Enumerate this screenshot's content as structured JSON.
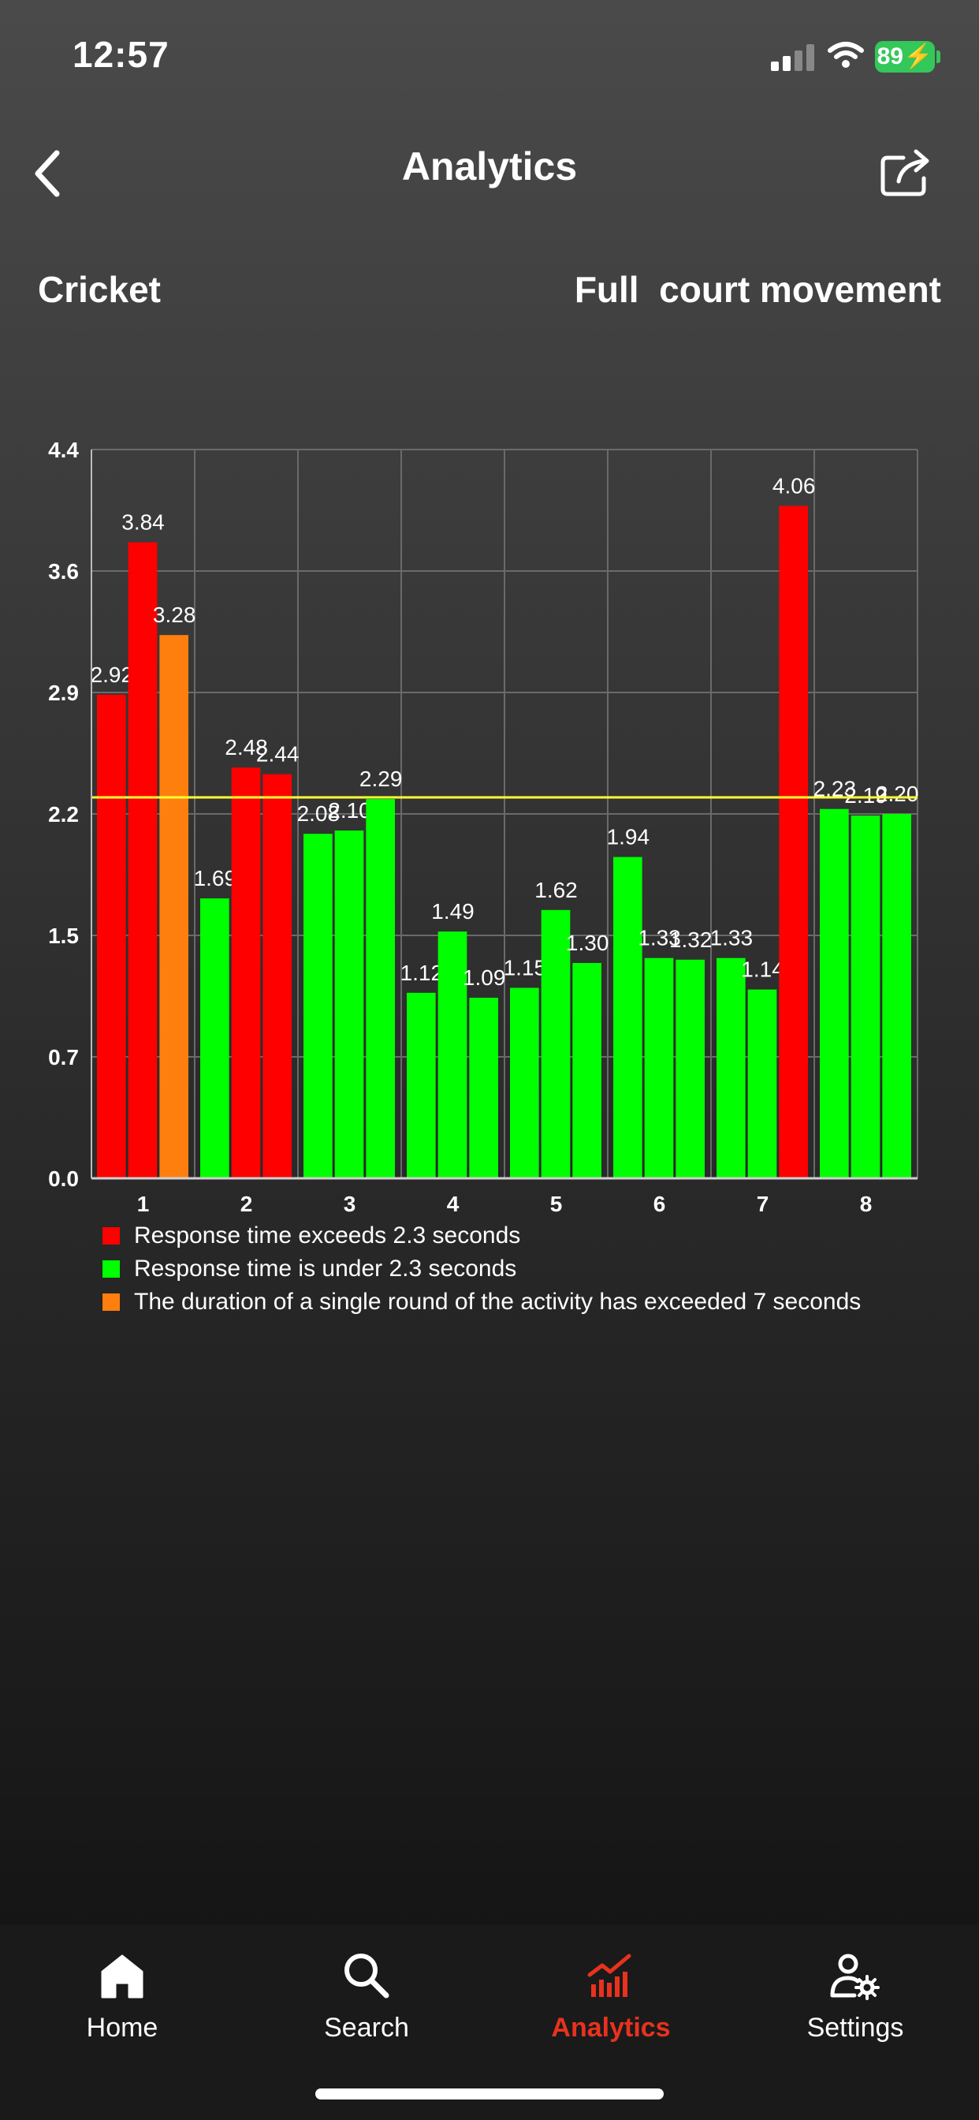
{
  "status_bar": {
    "time": "12:57",
    "battery": "89"
  },
  "header": {
    "title": "Analytics"
  },
  "subheader": {
    "left": "Cricket",
    "right": "Full  court movement"
  },
  "colors": {
    "red": "#ff0000",
    "green": "#00ff00",
    "orange": "#ff7f0e",
    "threshold": "#ffff33",
    "tab_active": "#e8321e"
  },
  "chart_data": {
    "type": "bar",
    "categories": [
      "1",
      "2",
      "3",
      "4",
      "5",
      "6",
      "7",
      "8"
    ],
    "y_ticks": [
      "0.0",
      "0.7",
      "1.5",
      "2.2",
      "2.9",
      "3.6",
      "4.4"
    ],
    "ylim": [
      0,
      4.4
    ],
    "threshold": 2.3,
    "grid": true,
    "groups": [
      [
        {
          "value": 2.92,
          "label": "2.92",
          "color": "red"
        },
        {
          "value": 3.84,
          "label": "3.84",
          "color": "red"
        },
        {
          "value": 3.28,
          "label": "3.28",
          "color": "orange"
        }
      ],
      [
        {
          "value": 1.69,
          "label": "1.69",
          "color": "green"
        },
        {
          "value": 2.48,
          "label": "2.48",
          "color": "red"
        },
        {
          "value": 2.44,
          "label": "2.44",
          "color": "red"
        }
      ],
      [
        {
          "value": 2.08,
          "label": "2.08",
          "color": "green"
        },
        {
          "value": 2.1,
          "label": "2.10",
          "color": "green"
        },
        {
          "value": 2.29,
          "label": "2.29",
          "color": "green"
        }
      ],
      [
        {
          "value": 1.12,
          "label": "1.12",
          "color": "green"
        },
        {
          "value": 1.49,
          "label": "1.49",
          "color": "green"
        },
        {
          "value": 1.09,
          "label": "1.09",
          "color": "green"
        }
      ],
      [
        {
          "value": 1.15,
          "label": "1.15",
          "color": "green"
        },
        {
          "value": 1.62,
          "label": "1.62",
          "color": "green"
        },
        {
          "value": 1.3,
          "label": "1.30",
          "color": "green"
        }
      ],
      [
        {
          "value": 1.94,
          "label": "1.94",
          "color": "green"
        },
        {
          "value": 1.33,
          "label": "1.33",
          "color": "green"
        },
        {
          "value": 1.32,
          "label": "1.32",
          "color": "green"
        }
      ],
      [
        {
          "value": 1.33,
          "label": "1.33",
          "color": "green"
        },
        {
          "value": 1.14,
          "label": "1.14",
          "color": "green"
        },
        {
          "value": 4.06,
          "label": "4.06",
          "color": "red"
        }
      ],
      [
        {
          "value": 2.23,
          "label": "2.23",
          "color": "green"
        },
        {
          "value": 2.19,
          "label": "2.19",
          "color": "green"
        },
        {
          "value": 2.2,
          "label": "2.20",
          "color": "green"
        }
      ]
    ],
    "legend": [
      {
        "color": "red",
        "text": "Response time exceeds 2.3 seconds"
      },
      {
        "color": "green",
        "text": "Response time is under 2.3 seconds"
      },
      {
        "color": "orange",
        "text": "The duration of a single round of the activity has exceeded 7 seconds"
      }
    ]
  },
  "tabs": [
    {
      "label": "Home",
      "icon": "home-icon",
      "active": false
    },
    {
      "label": "Search",
      "icon": "search-icon",
      "active": false
    },
    {
      "label": "Analytics",
      "icon": "analytics-icon",
      "active": true
    },
    {
      "label": "Settings",
      "icon": "settings-icon",
      "active": false
    }
  ]
}
